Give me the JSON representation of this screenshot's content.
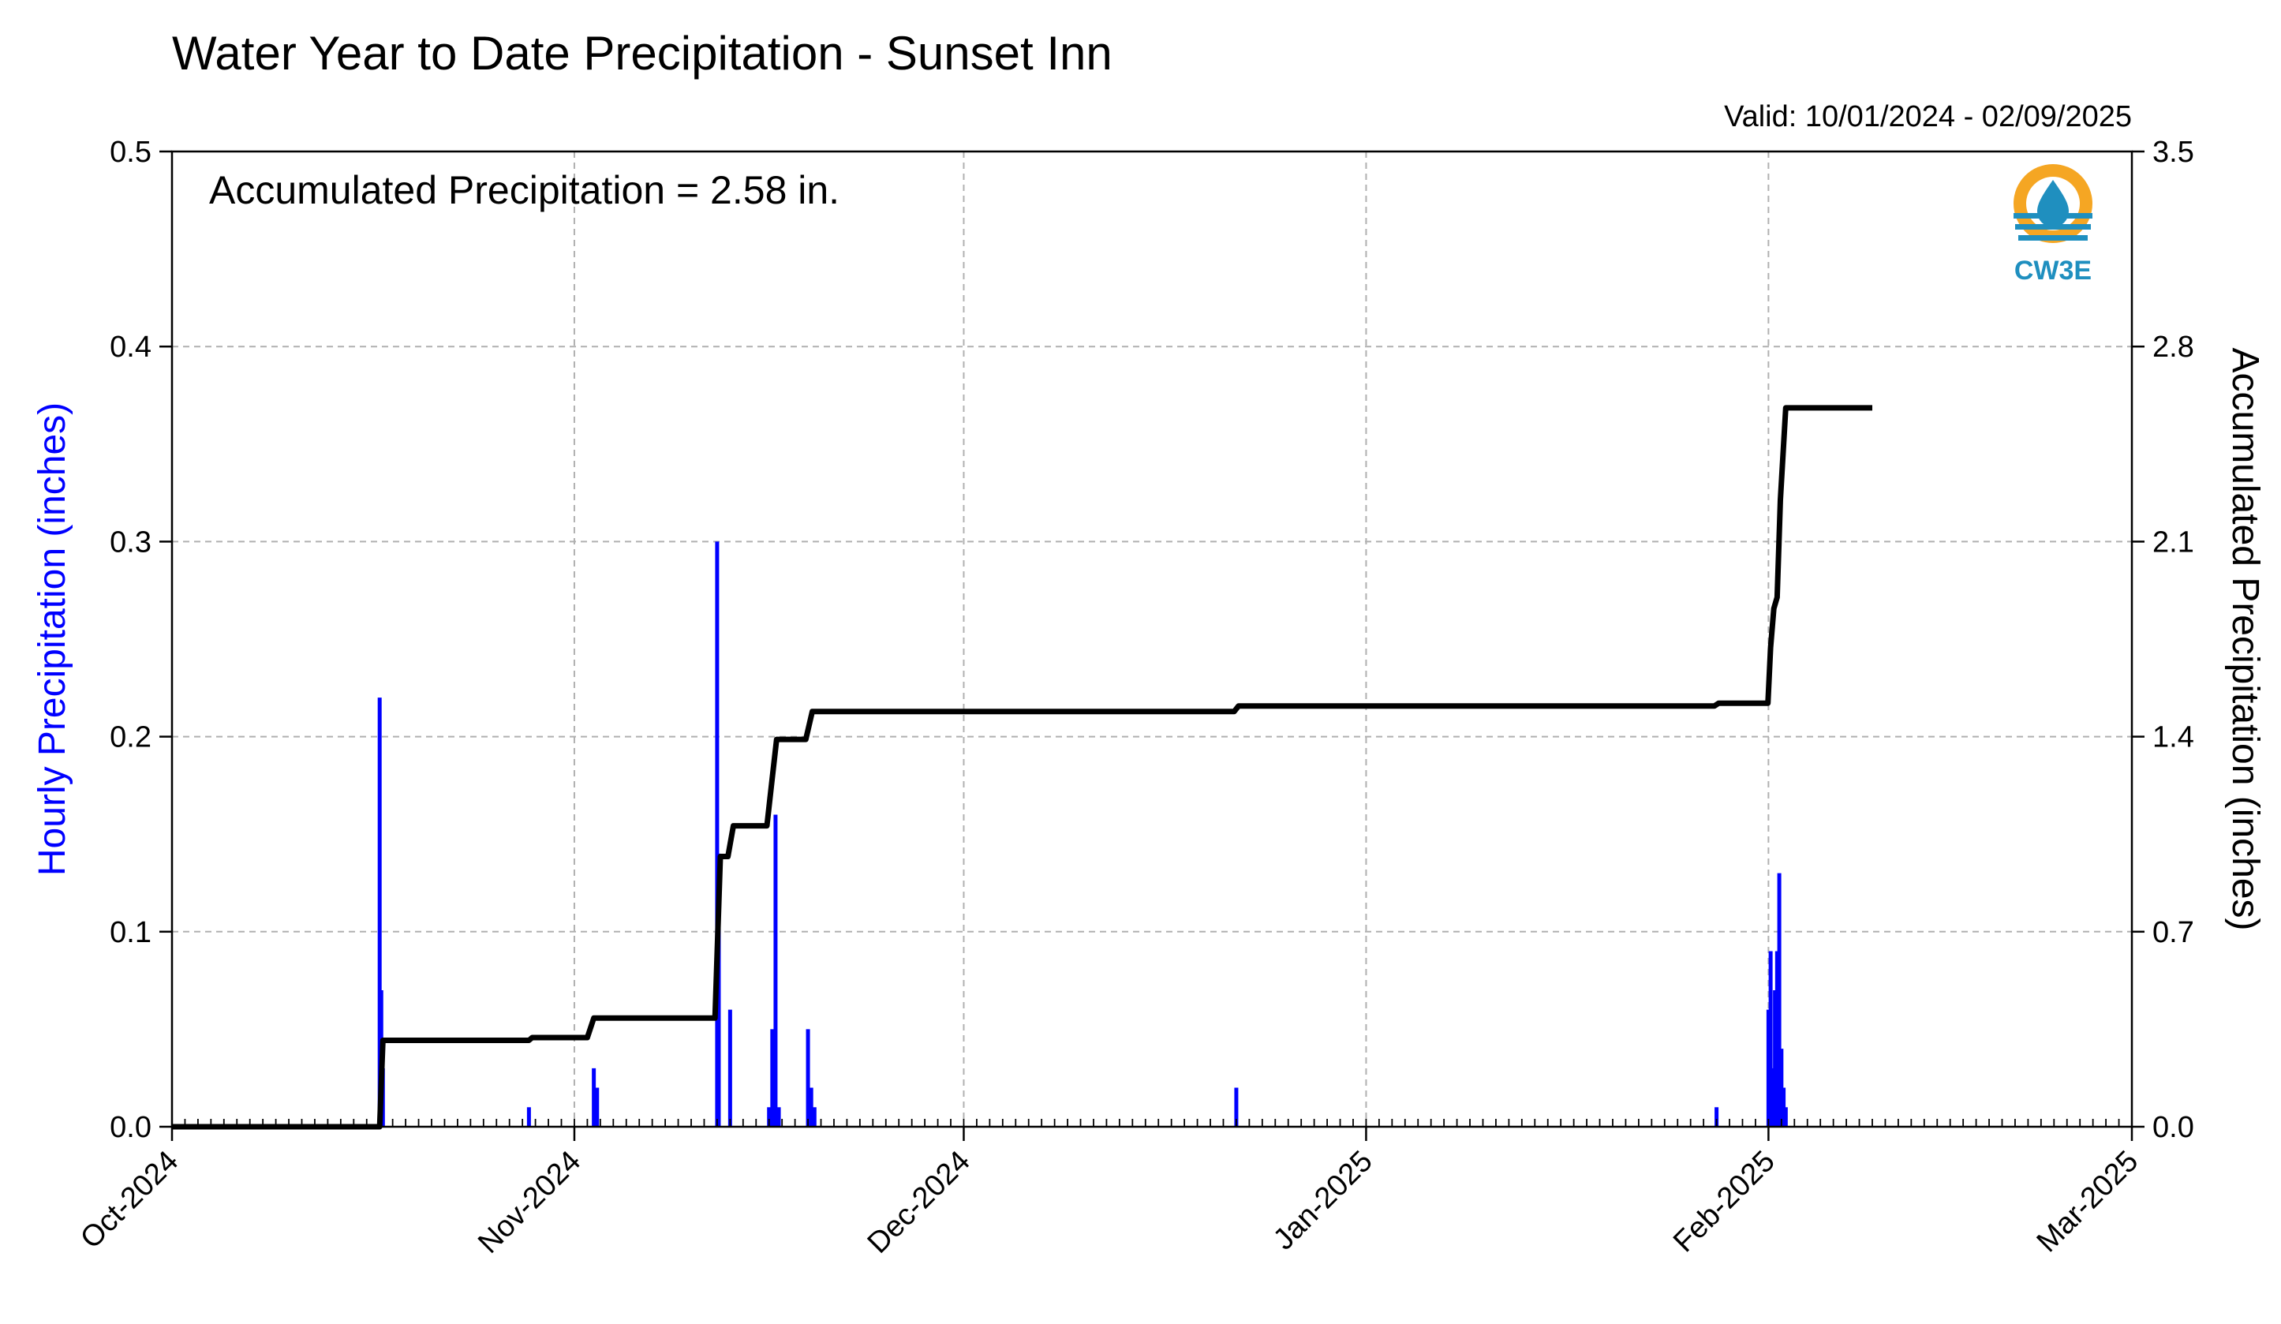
{
  "chart_data": {
    "type": "bar+line",
    "title": "Water Year to Date Precipitation - Sunset Inn",
    "subtitle": "Valid: 10/01/2024 - 02/09/2025",
    "annotation": "Accumulated Precipitation = 2.58 in.",
    "logo_text": "CW3E",
    "x_axis": {
      "tick_labels": [
        "Oct-2024",
        "Nov-2024",
        "Dec-2024",
        "Jan-2025",
        "Feb-2025",
        "Mar-2025"
      ],
      "tick_dates": [
        "2024-10-01",
        "2024-11-01",
        "2024-12-01",
        "2025-01-01",
        "2025-02-01",
        "2025-03-01"
      ],
      "range": [
        "2024-10-01",
        "2025-03-01"
      ]
    },
    "y_left": {
      "label": "Hourly Precipitation (inches)",
      "range": [
        0,
        0.5
      ],
      "ticks": [
        "0.0",
        "0.1",
        "0.2",
        "0.3",
        "0.4",
        "0.5"
      ],
      "color": "#0000ff"
    },
    "y_right": {
      "label": "Accumulated Precipitation (inches)",
      "range": [
        0,
        3.5
      ],
      "ticks": [
        "0.0",
        "0.7",
        "1.4",
        "2.1",
        "2.8",
        "3.5"
      ],
      "color": "#000000"
    },
    "grid": true,
    "series": [
      {
        "type": "bar",
        "axis": "left",
        "color": "#0000ff",
        "points": [
          [
            "2024-10-17 00:00",
            0.22
          ],
          [
            "2024-10-17 03:00",
            0.07
          ],
          [
            "2024-10-17 06:00",
            0.03
          ],
          [
            "2024-10-28 12:00",
            0.01
          ],
          [
            "2024-11-02 12:00",
            0.03
          ],
          [
            "2024-11-02 18:00",
            0.02
          ],
          [
            "2024-11-12 00:00",
            0.3
          ],
          [
            "2024-11-12 03:00",
            0.14
          ],
          [
            "2024-11-13 00:00",
            0.06
          ],
          [
            "2024-11-16 00:00",
            0.01
          ],
          [
            "2024-11-16 06:00",
            0.05
          ],
          [
            "2024-11-16 12:00",
            0.16
          ],
          [
            "2024-11-16 18:00",
            0.01
          ],
          [
            "2024-11-19 00:00",
            0.05
          ],
          [
            "2024-11-19 06:00",
            0.02
          ],
          [
            "2024-11-19 12:00",
            0.01
          ],
          [
            "2024-12-22 00:00",
            0.02
          ],
          [
            "2025-01-28 00:00",
            0.01
          ],
          [
            "2025-02-01 00:00",
            0.06
          ],
          [
            "2025-02-01 04:00",
            0.09
          ],
          [
            "2025-02-01 08:00",
            0.03
          ],
          [
            "2025-02-01 12:00",
            0.07
          ],
          [
            "2025-02-01 16:00",
            0.09
          ],
          [
            "2025-02-01 20:00",
            0.13
          ],
          [
            "2025-02-02 00:00",
            0.04
          ],
          [
            "2025-02-02 04:00",
            0.02
          ],
          [
            "2025-02-02 08:00",
            0.01
          ]
        ]
      },
      {
        "type": "line",
        "axis": "right",
        "color": "#000000",
        "points": [
          [
            "2024-10-01 00:00",
            0.0
          ],
          [
            "2024-10-17 00:00",
            0.0
          ],
          [
            "2024-10-17 06:00",
            0.31
          ],
          [
            "2024-10-28 12:00",
            0.31
          ],
          [
            "2024-10-28 18:00",
            0.32
          ],
          [
            "2024-11-02 00:00",
            0.32
          ],
          [
            "2024-11-02 12:00",
            0.39
          ],
          [
            "2024-11-11 20:00",
            0.39
          ],
          [
            "2024-11-12 06:00",
            0.97
          ],
          [
            "2024-11-12 20:00",
            0.97
          ],
          [
            "2024-11-13 06:00",
            1.08
          ],
          [
            "2024-11-15 20:00",
            1.08
          ],
          [
            "2024-11-16 04:00",
            1.22
          ],
          [
            "2024-11-16 14:00",
            1.39
          ],
          [
            "2024-11-18 20:00",
            1.39
          ],
          [
            "2024-11-19 08:00",
            1.49
          ],
          [
            "2024-12-21 20:00",
            1.49
          ],
          [
            "2024-12-22 04:00",
            1.51
          ],
          [
            "2025-01-27 20:00",
            1.51
          ],
          [
            "2025-01-28 04:00",
            1.52
          ],
          [
            "2025-01-31 23:00",
            1.52
          ],
          [
            "2025-02-01 04:00",
            1.72
          ],
          [
            "2025-02-01 10:00",
            1.86
          ],
          [
            "2025-02-01 16:00",
            1.9
          ],
          [
            "2025-02-01 22:00",
            2.25
          ],
          [
            "2025-02-02 08:00",
            2.58
          ],
          [
            "2025-02-09 00:00",
            2.58
          ]
        ]
      }
    ]
  }
}
